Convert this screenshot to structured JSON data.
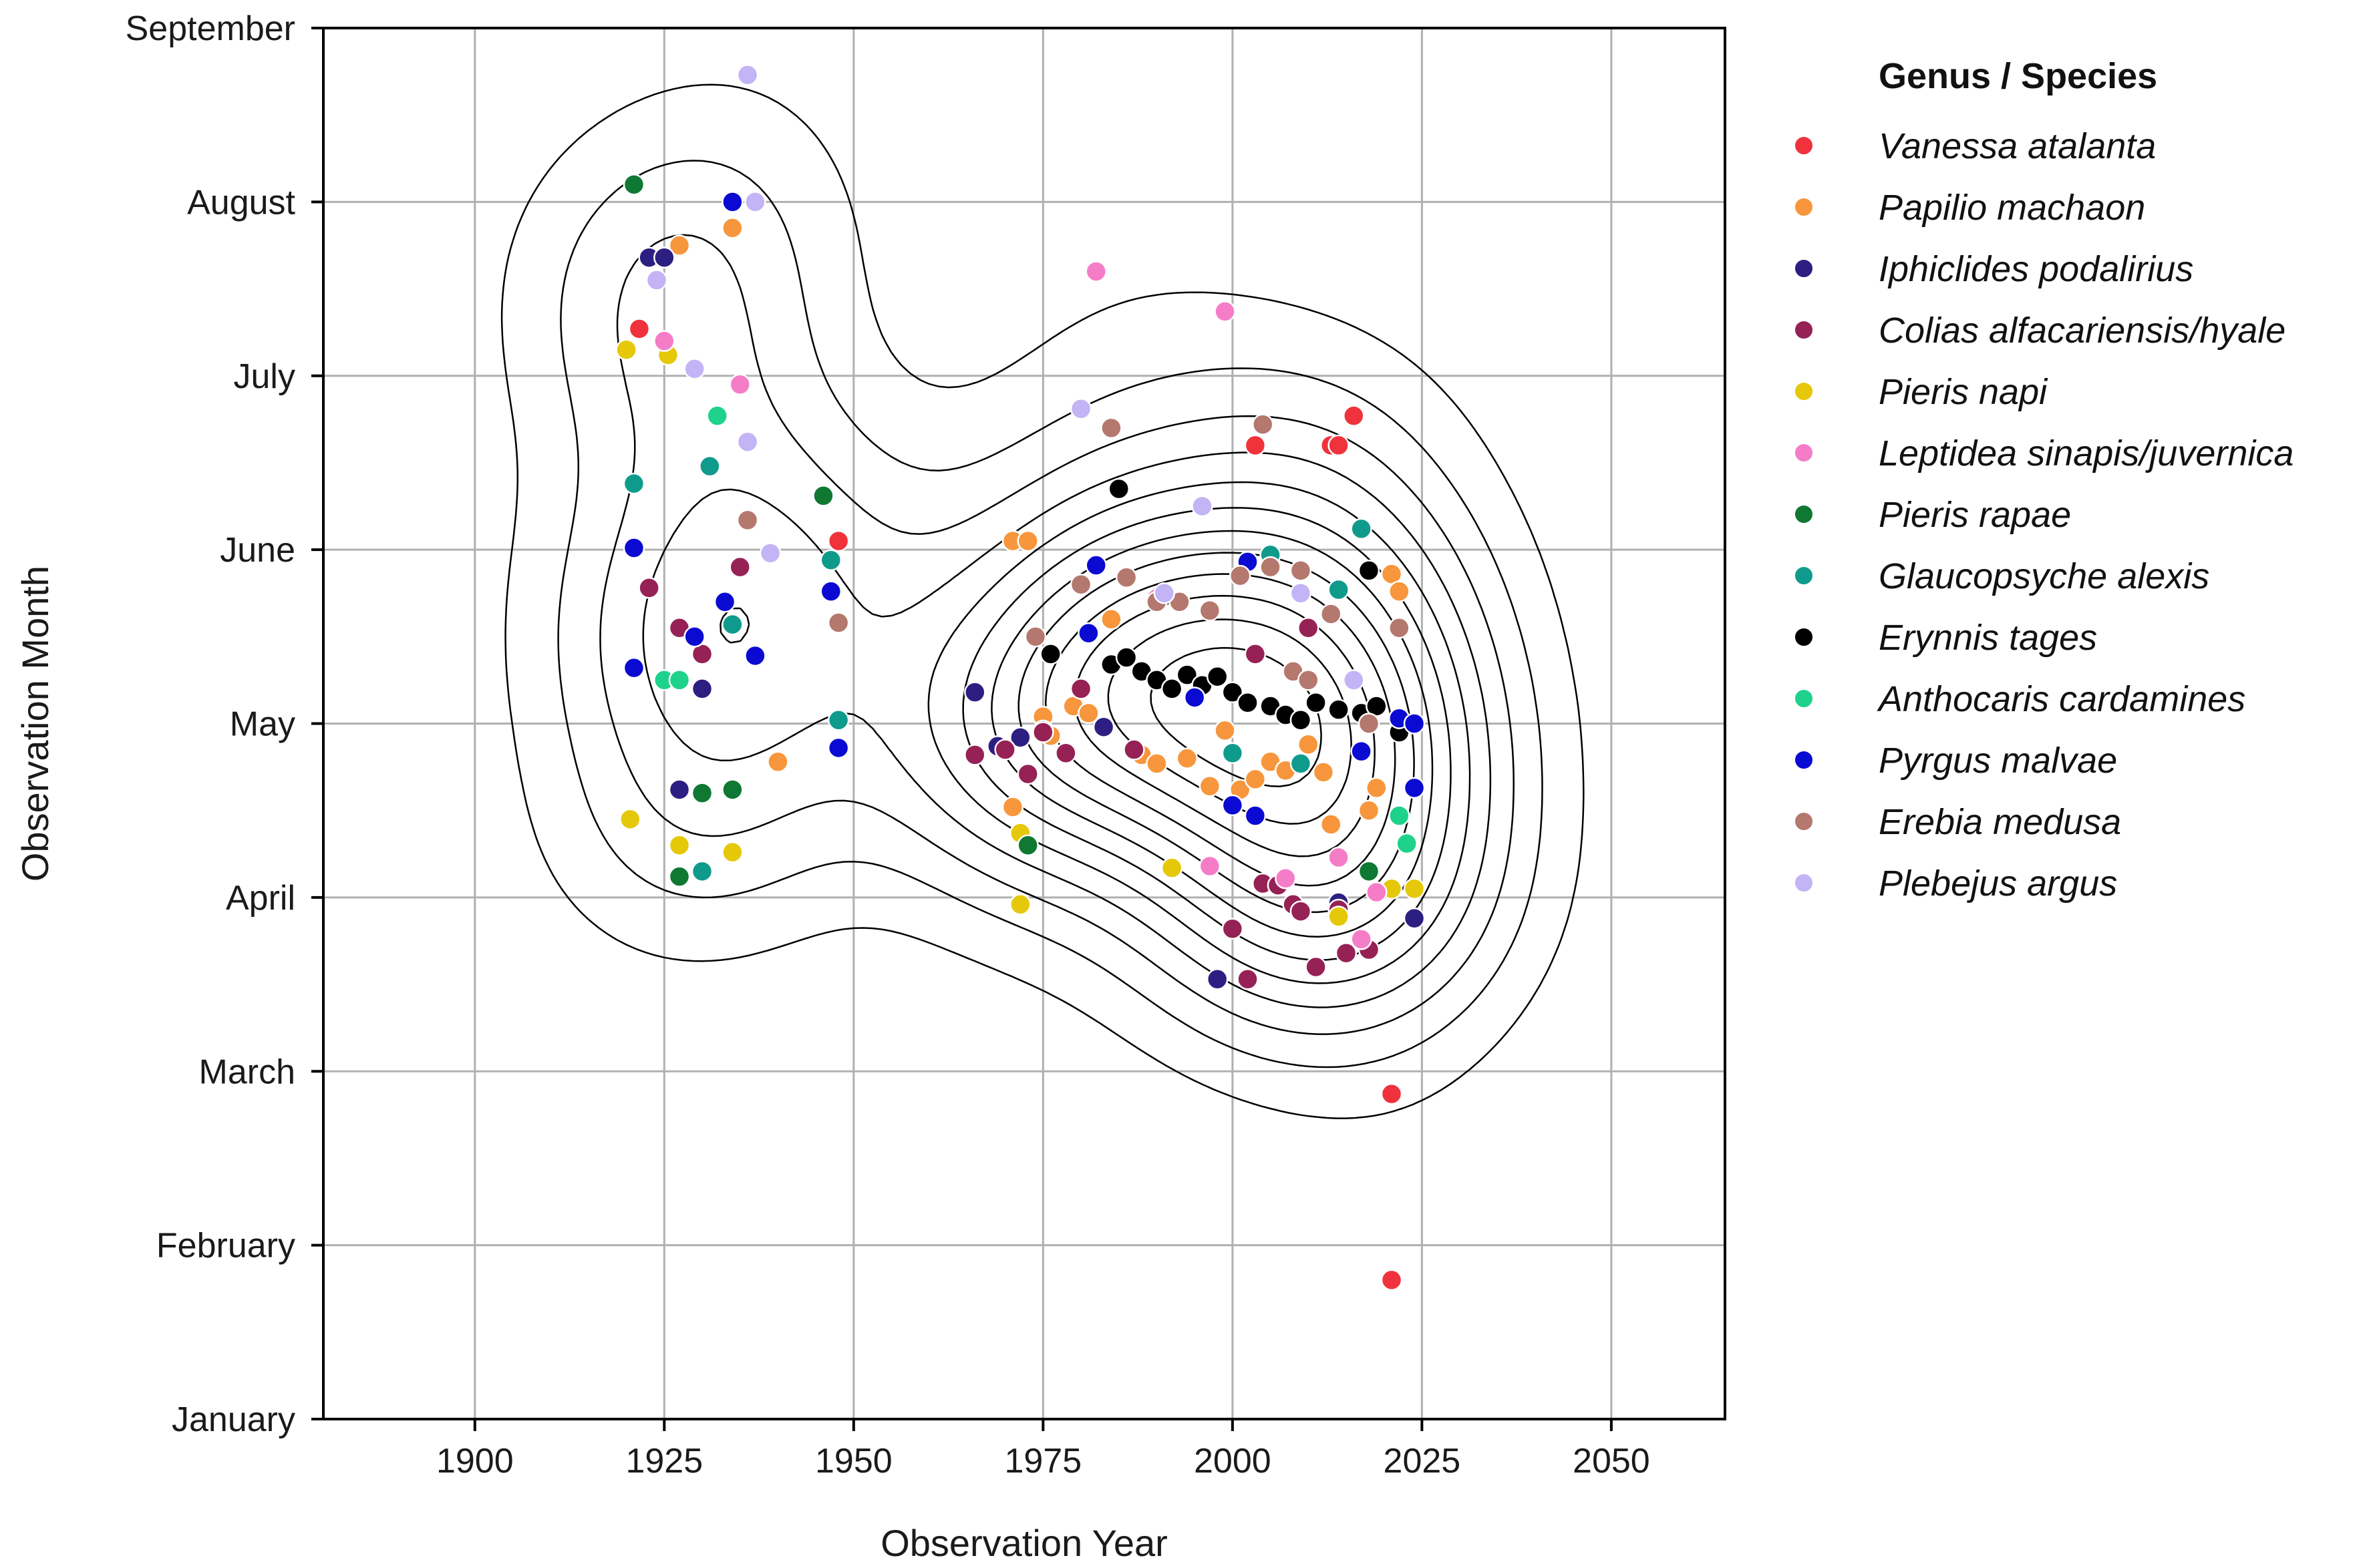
{
  "chart_data": {
    "type": "scatter",
    "title": "",
    "xlabel": "Observation Year",
    "ylabel": "Observation Month",
    "xlim": [
      1880,
      2065
    ],
    "ylim": [
      1,
      9
    ],
    "grid": true,
    "x_ticks": [
      1900,
      1925,
      1950,
      1975,
      2000,
      2025,
      2050
    ],
    "y_ticks": [
      {
        "value": 1,
        "label": "January"
      },
      {
        "value": 2,
        "label": "February"
      },
      {
        "value": 3,
        "label": "March"
      },
      {
        "value": 4,
        "label": "April"
      },
      {
        "value": 5,
        "label": "May"
      },
      {
        "value": 6,
        "label": "June"
      },
      {
        "value": 7,
        "label": "July"
      },
      {
        "value": 8,
        "label": "August"
      },
      {
        "value": 9,
        "label": "September"
      }
    ],
    "legend": {
      "title": "Genus / Species",
      "placement": "outside-right"
    },
    "contour": {
      "description": "kernel density estimate",
      "levels": 12,
      "color": "#000000"
    },
    "series": [
      {
        "name": "Vanessa atalanta",
        "color": "#F0323C",
        "points": [
          [
            1921.7,
            7.27
          ],
          [
            1948,
            6.05
          ],
          [
            2003,
            6.6
          ],
          [
            2013,
            6.6
          ],
          [
            2014,
            6.6
          ],
          [
            2016,
            6.77
          ],
          [
            2021,
            2.87
          ],
          [
            2021,
            1.8
          ]
        ]
      },
      {
        "name": "Papilio machaon",
        "color": "#F7963C",
        "points": [
          [
            1927,
            7.75
          ],
          [
            1934,
            7.85
          ],
          [
            1940,
            4.78
          ],
          [
            1971,
            6.05
          ],
          [
            1973,
            6.05
          ],
          [
            1975,
            5.04
          ],
          [
            1971,
            4.52
          ],
          [
            1976,
            4.93
          ],
          [
            1979,
            5.1
          ],
          [
            1981,
            5.06
          ],
          [
            1984,
            5.6
          ],
          [
            1988,
            4.82
          ],
          [
            1990,
            4.77
          ],
          [
            1994,
            4.8
          ],
          [
            1997,
            4.64
          ],
          [
            1999,
            4.96
          ],
          [
            2001,
            4.62
          ],
          [
            2003,
            4.68
          ],
          [
            2005,
            4.78
          ],
          [
            2007,
            4.73
          ],
          [
            2010,
            4.88
          ],
          [
            2012,
            4.72
          ],
          [
            2013,
            4.42
          ],
          [
            2018,
            4.5
          ],
          [
            2019,
            4.63
          ],
          [
            2021,
            5.86
          ],
          [
            2022,
            5.76
          ]
        ]
      },
      {
        "name": "Iphiclides podalirius",
        "color": "#2D1E82",
        "points": [
          [
            1923,
            7.68
          ],
          [
            1925,
            7.68
          ],
          [
            1927,
            4.62
          ],
          [
            1930,
            5.2
          ],
          [
            1966,
            5.18
          ],
          [
            1969,
            4.87
          ],
          [
            1972,
            4.92
          ],
          [
            1975,
            4.96
          ],
          [
            1983,
            4.98
          ],
          [
            1998,
            3.53
          ],
          [
            2014,
            3.97
          ],
          [
            2024,
            3.88
          ]
        ]
      },
      {
        "name": "Colias alfacariensis/hyale",
        "color": "#962155",
        "points": [
          [
            1923,
            5.78
          ],
          [
            1927,
            5.55
          ],
          [
            1930,
            5.4
          ],
          [
            1935,
            5.9
          ],
          [
            1966,
            4.82
          ],
          [
            1970,
            4.85
          ],
          [
            1973,
            4.71
          ],
          [
            1975,
            4.95
          ],
          [
            1978,
            4.83
          ],
          [
            1980,
            5.2
          ],
          [
            1987,
            4.85
          ],
          [
            2000,
            3.82
          ],
          [
            2002,
            3.53
          ],
          [
            2004,
            4.08
          ],
          [
            2006,
            4.07
          ],
          [
            2008,
            3.96
          ],
          [
            2009,
            3.92
          ],
          [
            2011,
            3.6
          ],
          [
            2014,
            3.93
          ],
          [
            2015,
            3.68
          ],
          [
            2018,
            3.7
          ],
          [
            2010,
            5.55
          ],
          [
            2003,
            5.4
          ]
        ]
      },
      {
        "name": "Pieris napi",
        "color": "#E6C80A",
        "points": [
          [
            1920,
            7.15
          ],
          [
            1920.5,
            4.45
          ],
          [
            1925.5,
            7.12
          ],
          [
            1927,
            4.3
          ],
          [
            1934,
            4.26
          ],
          [
            1972,
            4.37
          ],
          [
            1972,
            3.96
          ],
          [
            1992,
            4.17
          ],
          [
            2014,
            3.89
          ],
          [
            2021,
            4.05
          ],
          [
            2024,
            4.05
          ]
        ]
      },
      {
        "name": "Leptidea sinapis/juvernica",
        "color": "#F57DC8",
        "points": [
          [
            1925,
            7.2
          ],
          [
            1935,
            6.95
          ],
          [
            1982,
            7.6
          ],
          [
            1999,
            7.37
          ],
          [
            1990,
            5.72
          ],
          [
            1997,
            4.18
          ],
          [
            2007,
            4.11
          ],
          [
            2014,
            4.23
          ],
          [
            2017,
            3.76
          ],
          [
            2019,
            4.03
          ]
        ]
      },
      {
        "name": "Pieris rapae",
        "color": "#0F7832",
        "points": [
          [
            1921,
            8.1
          ],
          [
            1946,
            6.31
          ],
          [
            1927,
            4.12
          ],
          [
            1930,
            4.6
          ],
          [
            1934,
            4.62
          ],
          [
            1973,
            4.3
          ],
          [
            2018,
            4.15
          ]
        ]
      },
      {
        "name": "Glaucopsyche alexis",
        "color": "#0F9B8C",
        "points": [
          [
            1921,
            6.38
          ],
          [
            1931,
            6.48
          ],
          [
            1947,
            5.94
          ],
          [
            1930,
            4.15
          ],
          [
            1934,
            5.57
          ],
          [
            1948,
            5.02
          ],
          [
            2000,
            4.83
          ],
          [
            2005,
            5.97
          ],
          [
            2009,
            4.77
          ],
          [
            2017,
            6.12
          ],
          [
            2014,
            5.77
          ]
        ]
      },
      {
        "name": "Erynnis tages",
        "color": "#000000",
        "points": [
          [
            1985,
            6.35
          ],
          [
            1976,
            5.4
          ],
          [
            1984,
            5.34
          ],
          [
            1986,
            5.38
          ],
          [
            1988,
            5.3
          ],
          [
            1990,
            5.25
          ],
          [
            1992,
            5.2
          ],
          [
            1994,
            5.28
          ],
          [
            1996,
            5.22
          ],
          [
            1998,
            5.27
          ],
          [
            2000,
            5.18
          ],
          [
            2002,
            5.12
          ],
          [
            2005,
            5.1
          ],
          [
            2007,
            5.05
          ],
          [
            2009,
            5.02
          ],
          [
            2011,
            5.12
          ],
          [
            2014,
            5.08
          ],
          [
            2017,
            5.06
          ],
          [
            2018,
            5.88
          ],
          [
            2019,
            5.1
          ],
          [
            2022,
            4.95
          ]
        ]
      },
      {
        "name": "Anthocaris cardamines",
        "color": "#1ED28C",
        "points": [
          [
            1932,
            6.77
          ],
          [
            1925,
            5.25
          ],
          [
            1927,
            5.25
          ],
          [
            2022,
            4.47
          ],
          [
            2023,
            4.31
          ]
        ]
      },
      {
        "name": "Pyrgus malvae",
        "color": "#0A0AD2",
        "points": [
          [
            1934,
            8.0
          ],
          [
            1921,
            6.01
          ],
          [
            1921,
            5.32
          ],
          [
            1929,
            5.5
          ],
          [
            1933,
            5.7
          ],
          [
            1937,
            5.39
          ],
          [
            1947,
            5.76
          ],
          [
            1948,
            4.86
          ],
          [
            1981,
            5.52
          ],
          [
            1982,
            5.91
          ],
          [
            1995,
            5.15
          ],
          [
            2002,
            5.93
          ],
          [
            2000,
            4.53
          ],
          [
            2003,
            4.47
          ],
          [
            2017,
            4.84
          ],
          [
            2022,
            5.03
          ],
          [
            2024,
            5.0
          ],
          [
            2024,
            4.63
          ]
        ]
      },
      {
        "name": "Erebia medusa",
        "color": "#B4786E",
        "points": [
          [
            1984,
            6.7
          ],
          [
            2004,
            6.72
          ],
          [
            1936,
            6.17
          ],
          [
            1948,
            5.58
          ],
          [
            1974,
            5.5
          ],
          [
            1980,
            5.8
          ],
          [
            1986,
            5.84
          ],
          [
            1990,
            5.7
          ],
          [
            1993,
            5.7
          ],
          [
            1997,
            5.65
          ],
          [
            2001,
            5.85
          ],
          [
            2005,
            5.9
          ],
          [
            2009,
            5.88
          ],
          [
            2013,
            5.63
          ],
          [
            2022,
            5.55
          ],
          [
            2008,
            5.3
          ],
          [
            2010,
            5.25
          ],
          [
            2018,
            5.0
          ]
        ]
      },
      {
        "name": "Plebejus argus",
        "color": "#C3B4F5",
        "points": [
          [
            1936,
            8.73
          ],
          [
            1937,
            8.0
          ],
          [
            1924,
            7.55
          ],
          [
            1929,
            7.04
          ],
          [
            1936,
            6.62
          ],
          [
            1980,
            6.81
          ],
          [
            1996,
            6.25
          ],
          [
            1939,
            5.98
          ],
          [
            1991,
            5.75
          ],
          [
            2009,
            5.75
          ],
          [
            2016,
            5.25
          ]
        ]
      }
    ]
  }
}
